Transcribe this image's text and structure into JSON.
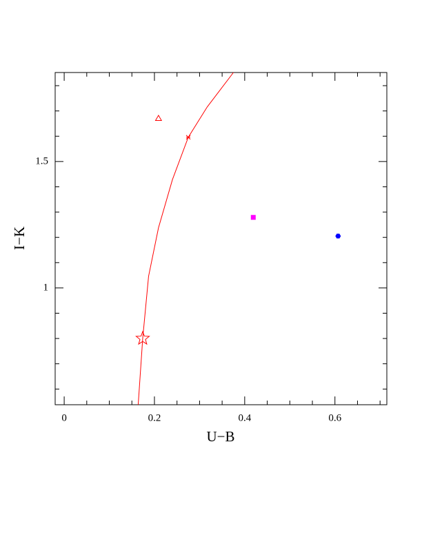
{
  "chart_data": {
    "type": "scatter",
    "x_label": "U−B",
    "y_label": "I−K",
    "xlim": [
      -0.02,
      0.715
    ],
    "ylim": [
      0.538,
      1.852
    ],
    "xticks": [
      0,
      0.2,
      0.4,
      0.6
    ],
    "yticks": [
      1,
      1.5
    ],
    "xminor_ticks": [
      0.05,
      0.1,
      0.15,
      0.25,
      0.3,
      0.35,
      0.45,
      0.5,
      0.55,
      0.65,
      0.7
    ],
    "yminor_ticks": [
      0.6,
      0.7,
      0.8,
      0.9,
      1.1,
      1.2,
      1.3,
      1.4,
      1.6,
      1.7,
      1.8
    ],
    "curve": {
      "color": "#ff0000",
      "x": [
        0.164,
        0.174,
        0.187,
        0.209,
        0.24,
        0.275,
        0.317,
        0.375
      ],
      "y": [
        0.538,
        0.8,
        1.046,
        1.238,
        1.429,
        1.596,
        1.716,
        1.852
      ]
    },
    "series": [
      {
        "marker": "triangle",
        "color": "#ff0000",
        "x": [
          0.209
        ],
        "values": [
          1.669
        ]
      },
      {
        "marker": "cross",
        "color": "#ff0000",
        "x": [
          0.275
        ],
        "values": [
          1.596
        ]
      },
      {
        "marker": "star",
        "color": "#ff0000",
        "x": [
          0.174
        ],
        "values": [
          0.8
        ]
      },
      {
        "marker": "square",
        "color": "#ff00ff",
        "x": [
          0.419
        ],
        "values": [
          1.279
        ]
      },
      {
        "marker": "hexagon",
        "color": "#0000ff",
        "x": [
          0.607
        ],
        "values": [
          1.205
        ]
      }
    ]
  }
}
